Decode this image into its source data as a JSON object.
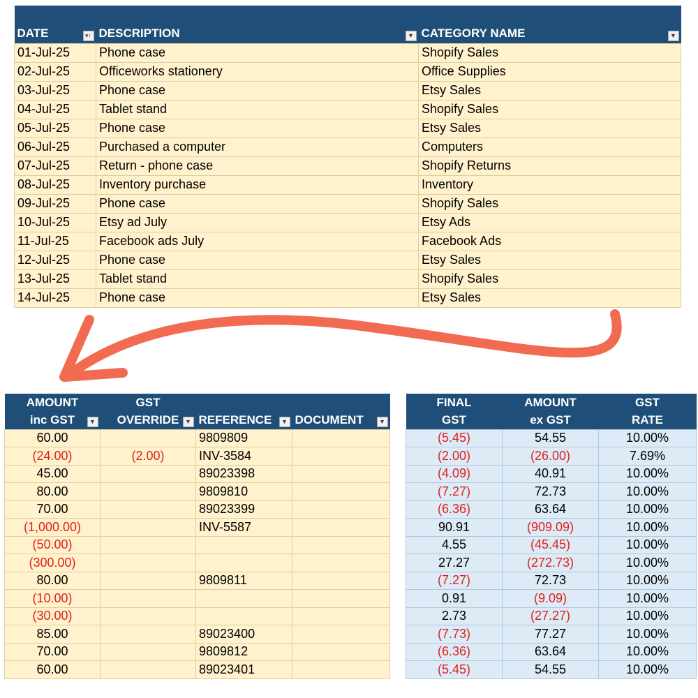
{
  "top_table": {
    "headers": [
      "DATE",
      "DESCRIPTION",
      "CATEGORY NAME"
    ],
    "rows": [
      [
        "01-Jul-25",
        "Phone case",
        "Shopify Sales"
      ],
      [
        "02-Jul-25",
        "Officeworks stationery",
        "Office Supplies"
      ],
      [
        "03-Jul-25",
        "Phone case",
        "Etsy Sales"
      ],
      [
        "04-Jul-25",
        "Tablet stand",
        "Shopify Sales"
      ],
      [
        "05-Jul-25",
        "Phone case",
        "Etsy Sales"
      ],
      [
        "06-Jul-25",
        "Purchased a computer",
        "Computers"
      ],
      [
        "07-Jul-25",
        "Return - phone case",
        "Shopify Returns"
      ],
      [
        "08-Jul-25",
        "Inventory purchase",
        "Inventory"
      ],
      [
        "09-Jul-25",
        "Phone case",
        "Shopify Sales"
      ],
      [
        "10-Jul-25",
        "Etsy ad July",
        "Etsy Ads"
      ],
      [
        "11-Jul-25",
        "Facebook ads July",
        "Facebook Ads"
      ],
      [
        "12-Jul-25",
        "Phone case",
        "Etsy Sales"
      ],
      [
        "13-Jul-25",
        "Tablet stand",
        "Shopify Sales"
      ],
      [
        "14-Jul-25",
        "Phone case",
        "Etsy Sales"
      ]
    ]
  },
  "left_table": {
    "headers": [
      {
        "line1": "AMOUNT",
        "line2": "inc GST"
      },
      {
        "line1": "GST",
        "line2": "OVERRIDE"
      },
      {
        "line1": "",
        "line2": "REFERENCE"
      },
      {
        "line1": "",
        "line2": "DOCUMENT"
      }
    ],
    "rows": [
      [
        "60.00",
        "",
        "9809809",
        ""
      ],
      [
        "(24.00)",
        "(2.00)",
        "INV-3584",
        ""
      ],
      [
        "45.00",
        "",
        "89023398",
        ""
      ],
      [
        "80.00",
        "",
        "9809810",
        ""
      ],
      [
        "70.00",
        "",
        "89023399",
        ""
      ],
      [
        "(1,000.00)",
        "",
        "INV-5587",
        ""
      ],
      [
        "(50.00)",
        "",
        "",
        ""
      ],
      [
        "(300.00)",
        "",
        "",
        ""
      ],
      [
        "80.00",
        "",
        "9809811",
        ""
      ],
      [
        "(10.00)",
        "",
        "",
        ""
      ],
      [
        "(30.00)",
        "",
        "",
        ""
      ],
      [
        "85.00",
        "",
        "89023400",
        ""
      ],
      [
        "70.00",
        "",
        "9809812",
        ""
      ],
      [
        "60.00",
        "",
        "89023401",
        ""
      ]
    ]
  },
  "right_table": {
    "headers": [
      {
        "line1": "FINAL",
        "line2": "GST"
      },
      {
        "line1": "AMOUNT",
        "line2": "ex GST"
      },
      {
        "line1": "GST",
        "line2": "RATE"
      }
    ],
    "rows": [
      [
        "(5.45)",
        "54.55",
        "10.00%"
      ],
      [
        "(2.00)",
        "(26.00)",
        "7.69%"
      ],
      [
        "(4.09)",
        "40.91",
        "10.00%"
      ],
      [
        "(7.27)",
        "72.73",
        "10.00%"
      ],
      [
        "(6.36)",
        "63.64",
        "10.00%"
      ],
      [
        "90.91",
        "(909.09)",
        "10.00%"
      ],
      [
        "4.55",
        "(45.45)",
        "10.00%"
      ],
      [
        "27.27",
        "(272.73)",
        "10.00%"
      ],
      [
        "(7.27)",
        "72.73",
        "10.00%"
      ],
      [
        "0.91",
        "(9.09)",
        "10.00%"
      ],
      [
        "2.73",
        "(27.27)",
        "10.00%"
      ],
      [
        "(7.73)",
        "77.27",
        "10.00%"
      ],
      [
        "(6.36)",
        "63.64",
        "10.00%"
      ],
      [
        "(5.45)",
        "54.55",
        "10.00%"
      ]
    ]
  },
  "icons": {
    "sort_filter": "sort-filter-icon",
    "filter": "filter-dropdown-icon",
    "arrow": "curved-arrow-icon"
  },
  "colors": {
    "header_bg": "#1f4e79",
    "yellow_cell": "#fff2cc",
    "blue_cell": "#ddebf7",
    "negative_text": "#e0201b",
    "arrow": "#f26b50"
  }
}
